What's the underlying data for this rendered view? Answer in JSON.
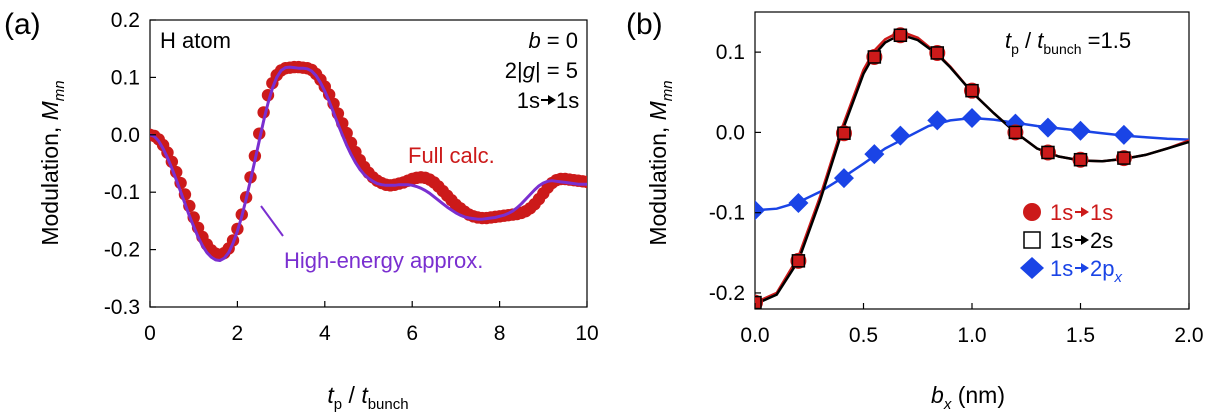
{
  "chart_data": [
    {
      "panel_label": "(a)",
      "type": "line",
      "xlabel": {
        "main": "t",
        "sub": "p",
        "sep": " / ",
        "main2": "t",
        "sub2": "bunch"
      },
      "ylabel": {
        "text": "Modulation, ",
        "sym": "M",
        "sub": "mn"
      },
      "xlim": [
        0,
        10
      ],
      "ylim": [
        -0.3,
        0.2
      ],
      "xticks": [
        0,
        2,
        4,
        6,
        8,
        10
      ],
      "xtick_labels": [
        "0",
        "2",
        "4",
        "6",
        "8",
        "10"
      ],
      "yticks": [
        -0.3,
        -0.2,
        -0.1,
        0.0,
        0.1,
        0.2
      ],
      "ytick_labels": [
        "-0.3",
        "-0.2",
        "-0.1",
        "0.0",
        "0.1",
        "0.2"
      ],
      "annotations": {
        "system": "H atom",
        "b_sym": "b",
        "b_rest": " = 0",
        "g_pre": "2|",
        "g_sym": "g",
        "g_post": "| = 5",
        "trans_from": "1s",
        "trans_to": "1s",
        "full_calc": "Full calc.",
        "high_energy": "High-energy approx."
      },
      "series": [
        {
          "name": "Full calc.",
          "style": "markers",
          "color": "#cc1a1a",
          "x": [
            0,
            0.1,
            0.2,
            0.3,
            0.4,
            0.5,
            0.6,
            0.7,
            0.8,
            0.9,
            1.0,
            1.1,
            1.2,
            1.3,
            1.4,
            1.5,
            1.6,
            1.7,
            1.8,
            1.9,
            2.0,
            2.1,
            2.2,
            2.3,
            2.4,
            2.5,
            2.6,
            2.7,
            2.8,
            2.9,
            3.0,
            3.1,
            3.2,
            3.3,
            3.4,
            3.5,
            3.6,
            3.7,
            3.8,
            3.9,
            4.0,
            4.1,
            4.2,
            4.3,
            4.4,
            4.5,
            4.6,
            4.7,
            4.8,
            4.9,
            5.0,
            5.1,
            5.2,
            5.3,
            5.4,
            5.5,
            5.6,
            5.7,
            5.8,
            5.9,
            6.0,
            6.1,
            6.2,
            6.3,
            6.4,
            6.5,
            6.6,
            6.7,
            6.8,
            6.9,
            7.0,
            7.1,
            7.2,
            7.3,
            7.4,
            7.5,
            7.6,
            7.7,
            7.8,
            7.9,
            8.0,
            8.1,
            8.2,
            8.3,
            8.4,
            8.5,
            8.6,
            8.7,
            8.8,
            8.9,
            9.0,
            9.1,
            9.2,
            9.3,
            9.4,
            9.5,
            9.6,
            9.7,
            9.8,
            9.9,
            10.0
          ],
          "y": [
            0,
            -0.002,
            -0.008,
            -0.018,
            -0.031,
            -0.047,
            -0.065,
            -0.084,
            -0.104,
            -0.124,
            -0.144,
            -0.162,
            -0.178,
            -0.191,
            -0.201,
            -0.207,
            -0.209,
            -0.206,
            -0.198,
            -0.184,
            -0.164,
            -0.139,
            -0.109,
            -0.074,
            -0.037,
            0.002,
            0.039,
            0.069,
            0.09,
            0.104,
            0.112,
            0.116,
            0.117,
            0.118,
            0.118,
            0.117,
            0.116,
            0.113,
            0.106,
            0.096,
            0.084,
            0.07,
            0.054,
            0.037,
            0.02,
            0.003,
            -0.014,
            -0.03,
            -0.044,
            -0.056,
            -0.066,
            -0.074,
            -0.08,
            -0.084,
            -0.087,
            -0.088,
            -0.087,
            -0.085,
            -0.083,
            -0.08,
            -0.077,
            -0.075,
            -0.074,
            -0.075,
            -0.078,
            -0.083,
            -0.09,
            -0.098,
            -0.106,
            -0.114,
            -0.122,
            -0.128,
            -0.134,
            -0.139,
            -0.142,
            -0.144,
            -0.145,
            -0.145,
            -0.144,
            -0.143,
            -0.142,
            -0.141,
            -0.14,
            -0.139,
            -0.138,
            -0.136,
            -0.133,
            -0.128,
            -0.121,
            -0.112,
            -0.102,
            -0.092,
            -0.084,
            -0.079,
            -0.077,
            -0.077,
            -0.078,
            -0.079,
            -0.08,
            -0.081,
            -0.082
          ]
        },
        {
          "name": "High-energy approx.",
          "style": "line",
          "color": "#7a2fd0",
          "x": [
            0,
            0.1,
            0.2,
            0.3,
            0.4,
            0.5,
            0.6,
            0.7,
            0.8,
            0.9,
            1.0,
            1.1,
            1.2,
            1.3,
            1.4,
            1.5,
            1.6,
            1.7,
            1.8,
            1.9,
            2.0,
            2.1,
            2.2,
            2.3,
            2.4,
            2.5,
            2.6,
            2.7,
            2.8,
            2.9,
            3.0,
            3.1,
            3.2,
            3.3,
            3.4,
            3.5,
            3.6,
            3.7,
            3.8,
            3.9,
            4.0,
            4.1,
            4.2,
            4.3,
            4.4,
            4.5,
            4.6,
            4.7,
            4.8,
            4.9,
            5.0,
            5.1,
            5.2,
            5.3,
            5.4,
            5.5,
            5.6,
            5.7,
            5.8,
            5.9,
            6.0,
            6.1,
            6.2,
            6.3,
            6.4,
            6.5,
            6.6,
            6.7,
            6.8,
            6.9,
            7.0,
            7.1,
            7.2,
            7.3,
            7.4,
            7.5,
            7.6,
            7.7,
            7.8,
            7.9,
            8.0,
            8.1,
            8.2,
            8.3,
            8.4,
            8.5,
            8.6,
            8.7,
            8.8,
            8.9,
            9.0,
            9.1,
            9.2,
            9.3,
            9.4,
            9.5,
            9.6,
            9.7,
            9.8,
            9.9,
            10.0
          ],
          "y": [
            0,
            -0.003,
            -0.011,
            -0.024,
            -0.04,
            -0.058,
            -0.078,
            -0.099,
            -0.12,
            -0.141,
            -0.16,
            -0.178,
            -0.193,
            -0.205,
            -0.213,
            -0.218,
            -0.219,
            -0.215,
            -0.205,
            -0.189,
            -0.168,
            -0.142,
            -0.112,
            -0.079,
            -0.045,
            -0.01,
            0.024,
            0.055,
            0.081,
            0.1,
            0.112,
            0.117,
            0.118,
            0.117,
            0.116,
            0.116,
            0.115,
            0.111,
            0.103,
            0.091,
            0.076,
            0.058,
            0.039,
            0.019,
            0.0,
            -0.018,
            -0.034,
            -0.048,
            -0.06,
            -0.069,
            -0.076,
            -0.081,
            -0.085,
            -0.087,
            -0.088,
            -0.088,
            -0.088,
            -0.087,
            -0.087,
            -0.087,
            -0.088,
            -0.09,
            -0.093,
            -0.097,
            -0.102,
            -0.108,
            -0.114,
            -0.12,
            -0.126,
            -0.131,
            -0.136,
            -0.14,
            -0.143,
            -0.145,
            -0.146,
            -0.147,
            -0.147,
            -0.146,
            -0.145,
            -0.144,
            -0.142,
            -0.14,
            -0.137,
            -0.133,
            -0.127,
            -0.12,
            -0.112,
            -0.104,
            -0.096,
            -0.089,
            -0.084,
            -0.081,
            -0.08,
            -0.081,
            -0.082,
            -0.083,
            -0.084,
            -0.085,
            -0.086,
            -0.086,
            -0.086
          ]
        }
      ]
    },
    {
      "panel_label": "(b)",
      "type": "line",
      "xlabel": {
        "sym": "b",
        "sub": "x",
        "rest": " (nm)"
      },
      "ylabel": {
        "text": "Modulation, ",
        "sym": "M",
        "sub": "mn"
      },
      "xlim": [
        0,
        2
      ],
      "ylim": [
        -0.22,
        0.15
      ],
      "xticks": [
        0,
        0.5,
        1.0,
        1.5,
        2.0
      ],
      "xtick_labels": [
        "0.0",
        "0.5",
        "1.0",
        "1.5",
        "2.0"
      ],
      "yticks": [
        -0.2,
        -0.1,
        0.0,
        0.1
      ],
      "ytick_labels": [
        "-0.2",
        "-0.1",
        "0.0",
        "0.1"
      ],
      "annotations": {
        "ratio_main": "t",
        "ratio_sub": "p",
        "ratio_sep": " / ",
        "ratio_main2": "t",
        "ratio_sub2": "bunch",
        "ratio_value": " =1.5"
      },
      "legend_position": "bottom-right",
      "series": [
        {
          "name": "1s→1s",
          "legend_from": "1s",
          "legend_to": "1s",
          "marker": "circle",
          "color": "#cc1a1a",
          "curve_x": [
            0,
            0.1,
            0.2,
            0.3,
            0.4,
            0.5,
            0.55,
            0.6,
            0.67,
            0.75,
            0.84,
            0.9,
            1.0,
            1.1,
            1.2,
            1.3,
            1.4,
            1.5,
            1.6,
            1.7,
            1.8,
            1.9,
            2.0
          ],
          "curve_y": [
            -0.212,
            -0.2,
            -0.155,
            -0.08,
            0.005,
            0.078,
            0.102,
            0.116,
            0.126,
            0.118,
            0.098,
            0.082,
            0.05,
            0.024,
            0.0,
            -0.02,
            -0.03,
            -0.035,
            -0.036,
            -0.033,
            -0.028,
            -0.02,
            -0.01
          ],
          "x": [
            0,
            0.2,
            0.41,
            0.55,
            0.67,
            0.84,
            1.0,
            1.2,
            1.35,
            1.5,
            1.7
          ],
          "y": [
            -0.212,
            -0.16,
            -0.001,
            0.094,
            0.121,
            0.099,
            0.052,
            0.0,
            -0.025,
            -0.034,
            -0.032
          ]
        },
        {
          "name": "1s→2s",
          "legend_from": "1s",
          "legend_to": "2s",
          "marker": "square",
          "color": "#000000",
          "curve_x": [
            0,
            0.1,
            0.2,
            0.3,
            0.4,
            0.5,
            0.55,
            0.6,
            0.67,
            0.75,
            0.84,
            0.9,
            1.0,
            1.1,
            1.2,
            1.3,
            1.4,
            1.5,
            1.6,
            1.7,
            1.8,
            1.9,
            2.0
          ],
          "curve_y": [
            -0.214,
            -0.202,
            -0.16,
            -0.085,
            0.0,
            0.073,
            0.097,
            0.112,
            0.122,
            0.115,
            0.097,
            0.081,
            0.05,
            0.024,
            0.0,
            -0.02,
            -0.03,
            -0.035,
            -0.036,
            -0.033,
            -0.028,
            -0.02,
            -0.012
          ],
          "x": [
            0,
            0.2,
            0.41,
            0.55,
            0.67,
            0.84,
            1.0,
            1.2,
            1.35,
            1.5,
            1.7
          ],
          "y": [
            -0.212,
            -0.16,
            -0.001,
            0.094,
            0.121,
            0.099,
            0.052,
            0.0,
            -0.025,
            -0.034,
            -0.032
          ]
        },
        {
          "name": "1s→2px",
          "legend_from": "1s",
          "legend_to": "2p",
          "legend_to_sub": "x",
          "marker": "diamond",
          "color": "#1a44e6",
          "curve_x": [
            0,
            0.1,
            0.2,
            0.3,
            0.4,
            0.5,
            0.6,
            0.7,
            0.8,
            0.9,
            1.0,
            1.1,
            1.2,
            1.3,
            1.4,
            1.5,
            1.6,
            1.7,
            1.8,
            1.9,
            2.0
          ],
          "curve_y": [
            -0.097,
            -0.095,
            -0.087,
            -0.074,
            -0.057,
            -0.039,
            -0.02,
            -0.006,
            0.008,
            0.015,
            0.018,
            0.016,
            0.012,
            0.008,
            0.005,
            0.002,
            -0.001,
            -0.004,
            -0.006,
            -0.008,
            -0.009
          ],
          "x": [
            0,
            0.2,
            0.41,
            0.55,
            0.67,
            0.84,
            1.0,
            1.2,
            1.35,
            1.5,
            1.7
          ],
          "y": [
            -0.097,
            -0.088,
            -0.057,
            -0.027,
            -0.004,
            0.015,
            0.018,
            0.011,
            0.006,
            0.002,
            -0.003
          ]
        }
      ]
    }
  ]
}
